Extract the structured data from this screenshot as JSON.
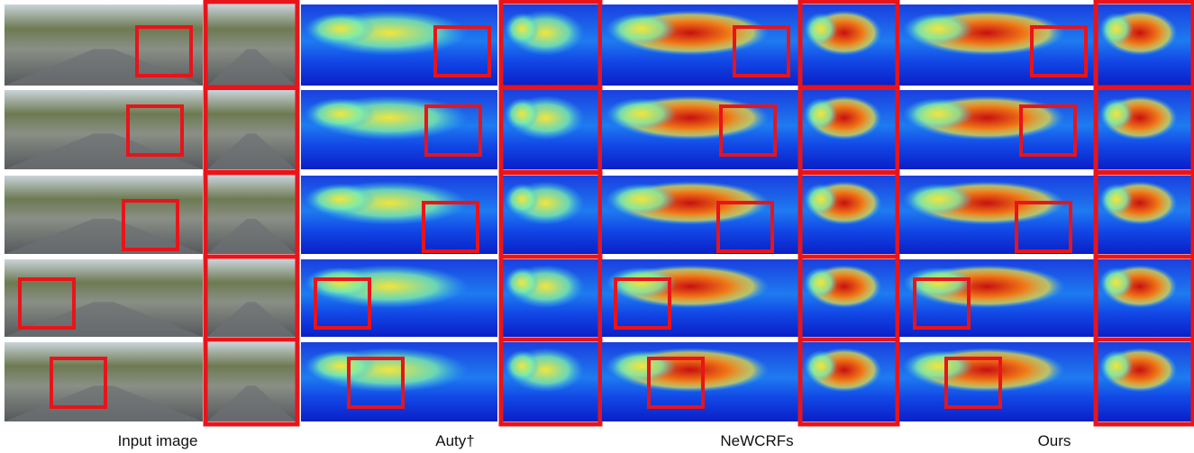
{
  "captions": [
    "Input image",
    "Auty†",
    "NeWCRFs",
    "Ours"
  ]
}
